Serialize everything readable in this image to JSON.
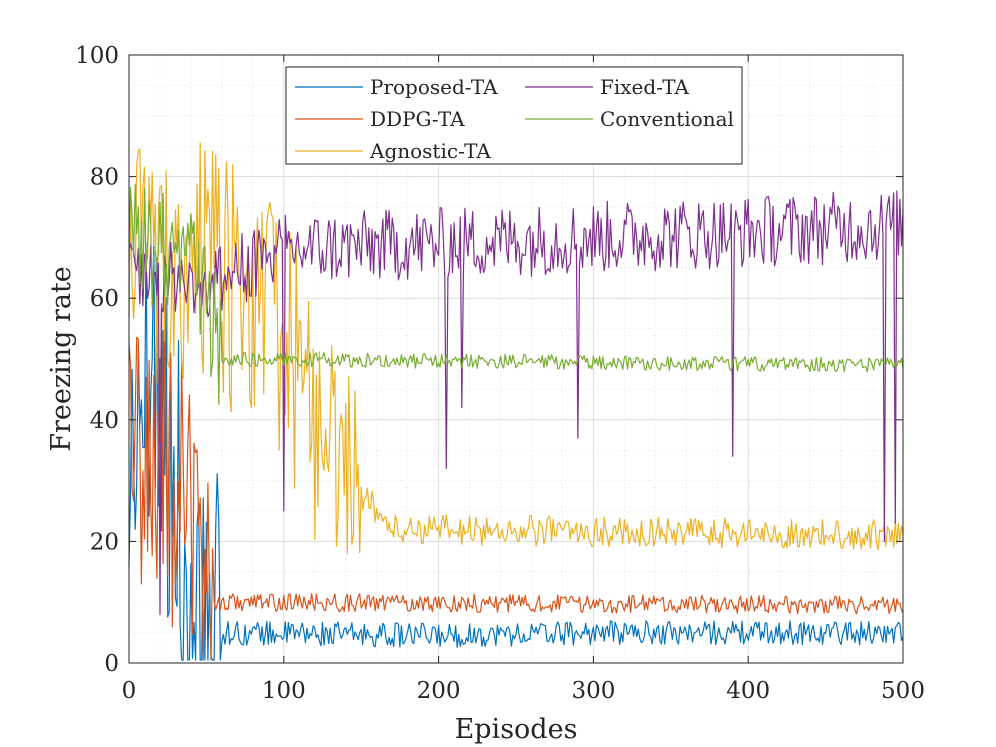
{
  "chart_data": {
    "type": "line",
    "xlabel": "Episodes",
    "ylabel": "Freezing rate",
    "xlim": [
      0,
      500
    ],
    "ylim": [
      0,
      100
    ],
    "xticks": [
      0,
      100,
      200,
      300,
      400,
      500
    ],
    "yticks": [
      0,
      20,
      40,
      60,
      80,
      100
    ],
    "grid": true,
    "legend_position": "top",
    "series": [
      {
        "name": "Proposed-TA",
        "color": "#0072BD",
        "profile": [
          [
            0,
            30
          ],
          [
            10,
            45
          ],
          [
            20,
            40
          ],
          [
            30,
            35
          ],
          [
            35,
            10
          ],
          [
            60,
            5
          ],
          [
            200,
            4.5
          ],
          [
            300,
            5
          ],
          [
            400,
            5
          ],
          [
            500,
            5
          ]
        ],
        "noise": 2.0,
        "burst": {
          "end": 60,
          "amp": 30
        }
      },
      {
        "name": "DDPG-TA",
        "color": "#D95319",
        "profile": [
          [
            0,
            40
          ],
          [
            20,
            35
          ],
          [
            40,
            25
          ],
          [
            55,
            10
          ],
          [
            500,
            9.5
          ]
        ],
        "noise": 1.5,
        "burst": {
          "end": 55,
          "amp": 25
        }
      },
      {
        "name": "Agnostic-TA",
        "color": "#EDB120",
        "profile": [
          [
            0,
            65
          ],
          [
            50,
            65
          ],
          [
            100,
            55
          ],
          [
            120,
            40
          ],
          [
            150,
            28
          ],
          [
            170,
            22
          ],
          [
            500,
            21
          ]
        ],
        "noise": 2.5,
        "burst": {
          "end": 150,
          "amp": 20
        }
      },
      {
        "name": "Fixed-TA",
        "color": "#7E2F8E",
        "profile": [
          [
            0,
            65
          ],
          [
            50,
            62
          ],
          [
            100,
            68
          ],
          [
            500,
            72
          ]
        ],
        "noise": 6,
        "burst": {
          "end": 0,
          "amp": 0
        },
        "dips": [
          [
            20,
            8
          ],
          [
            100,
            25
          ],
          [
            205,
            32
          ],
          [
            215,
            42
          ],
          [
            290,
            37
          ],
          [
            390,
            34
          ],
          [
            488,
            20
          ],
          [
            495,
            23
          ]
        ]
      },
      {
        "name": "Conventional",
        "color": "#77AC30",
        "profile": [
          [
            0,
            70
          ],
          [
            40,
            68
          ],
          [
            60,
            50
          ],
          [
            500,
            49
          ]
        ],
        "noise": 1.2,
        "burst": {
          "end": 60,
          "amp": 10
        }
      }
    ]
  }
}
